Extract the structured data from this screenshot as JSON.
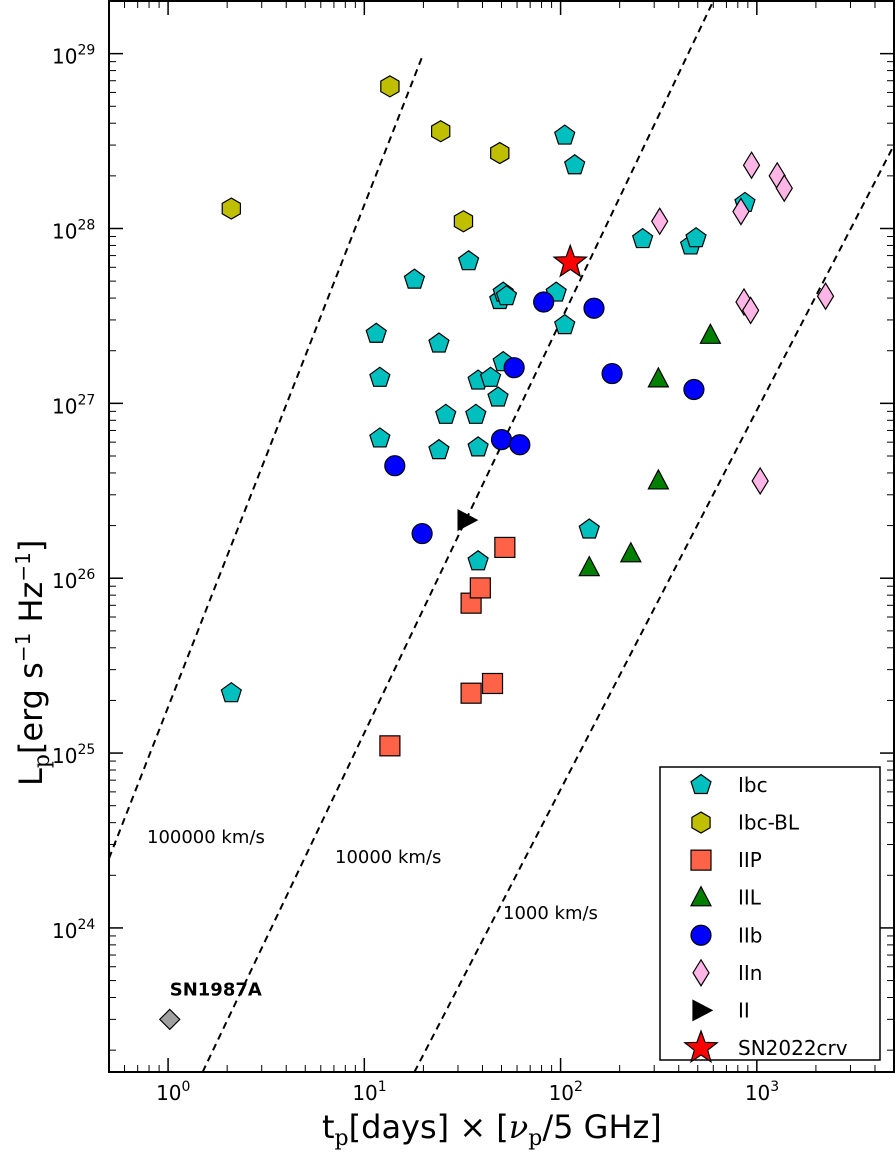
{
  "colors": {
    "Ibc": "#00BFBF",
    "Ibc-BL": "#BFBF00",
    "IIP": "#FF6347",
    "IIL": "#008000",
    "IIb": "#0000FF",
    "IIn": "#FFB6E6",
    "II": "#000000",
    "SN2022crv": "#FF0000",
    "SN1987A": "#A0A0A0"
  },
  "chart_data": {
    "type": "scatter",
    "xscale": "log",
    "yscale": "log",
    "xlim": [
      0.5,
      5000
    ],
    "ylim": [
      1.5e+23,
      2e+29
    ],
    "xticks": [
      {
        "value": 1,
        "base": "10",
        "exp": "0"
      },
      {
        "value": 10,
        "base": "10",
        "exp": "1"
      },
      {
        "value": 100,
        "base": "10",
        "exp": "2"
      },
      {
        "value": 1000,
        "base": "10",
        "exp": "3"
      }
    ],
    "yticks": [
      {
        "value": 1e+24,
        "base": "10",
        "exp": "24"
      },
      {
        "value": 1e+25,
        "base": "10",
        "exp": "25"
      },
      {
        "value": 1e+26,
        "base": "10",
        "exp": "26"
      },
      {
        "value": 1e+27,
        "base": "10",
        "exp": "27"
      },
      {
        "value": 1e+28,
        "base": "10",
        "exp": "28"
      },
      {
        "value": 1e+29,
        "base": "10",
        "exp": "29"
      }
    ],
    "xlabel": "t_p[days] × [ν_p/5 GHz]",
    "ylabel": "L_p[erg s^-1 Hz^-1]",
    "legend_position": "lower-right",
    "velocity_lines": [
      {
        "label": "100000 km/s",
        "points": [
          [
            0.5,
            2.5e+24
          ],
          [
            20,
            1e+29
          ]
        ]
      },
      {
        "label": "10000 km/s",
        "points": [
          [
            1.5,
            1.5e+23
          ],
          [
            600,
            2e+29
          ]
        ]
      },
      {
        "label": "1000 km/s",
        "points": [
          [
            18,
            1.5e+23
          ],
          [
            5000,
            3e+28
          ]
        ]
      }
    ],
    "series": [
      {
        "name": "Ibc",
        "marker": "pentagon",
        "points": [
          [
            2.1,
            2.2e+25
          ],
          [
            11.5,
            2.5e+27
          ],
          [
            12,
            1.4e+27
          ],
          [
            12,
            6.3e+26
          ],
          [
            18,
            5.1e+27
          ],
          [
            24,
            2.2e+27
          ],
          [
            24,
            5.4e+26
          ],
          [
            26,
            8.6e+26
          ],
          [
            34,
            6.5e+27
          ],
          [
            37,
            8.6e+26
          ],
          [
            38,
            1.35e+27
          ],
          [
            38,
            5.6e+26
          ],
          [
            38,
            1.25e+26
          ],
          [
            44,
            1.4e+27
          ],
          [
            48,
            1.08e+27
          ],
          [
            49,
            3.9e+27
          ],
          [
            51,
            4.3e+27
          ],
          [
            51,
            1.72e+27
          ],
          [
            53,
            4.1e+27
          ],
          [
            95,
            4.3e+27
          ],
          [
            105,
            2.8e+27
          ],
          [
            105,
            3.4e+28
          ],
          [
            118,
            2.3e+28
          ],
          [
            140,
            1.9e+26
          ],
          [
            262,
            8.7e+27
          ],
          [
            460,
            8e+27
          ],
          [
            490,
            8.8e+27
          ],
          [
            870,
            1.4e+28
          ]
        ]
      },
      {
        "name": "Ibc-BL",
        "marker": "hexagon",
        "points": [
          [
            2.1,
            1.3e+28
          ],
          [
            13.5,
            6.5e+28
          ],
          [
            24.5,
            3.6e+28
          ],
          [
            32,
            1.1e+28
          ],
          [
            49,
            2.7e+28
          ]
        ]
      },
      {
        "name": "IIP",
        "marker": "square",
        "points": [
          [
            13.5,
            1.1e+25
          ],
          [
            35,
            2.2e+25
          ],
          [
            35,
            7.2e+25
          ],
          [
            39,
            8.8e+25
          ],
          [
            45,
            2.5e+25
          ],
          [
            52,
            1.5e+26
          ]
        ]
      },
      {
        "name": "IIL",
        "marker": "triangle",
        "points": [
          [
            140,
            1.15e+26
          ],
          [
            228,
            1.38e+26
          ],
          [
            315,
            3.6e+26
          ],
          [
            315,
            1.38e+27
          ],
          [
            580,
            2.45e+27
          ]
        ]
      },
      {
        "name": "IIb",
        "marker": "circle",
        "points": [
          [
            14.3,
            4.4e+26
          ],
          [
            19.7,
            1.8e+26
          ],
          [
            50,
            6.2e+26
          ],
          [
            58,
            1.6e+27
          ],
          [
            62,
            5.8e+26
          ],
          [
            82,
            3.8e+27
          ],
          [
            148,
            3.5e+27
          ],
          [
            183,
            1.48e+27
          ],
          [
            478,
            1.2e+27
          ]
        ]
      },
      {
        "name": "IIn",
        "marker": "diamond",
        "points": [
          [
            320,
            1.1e+28
          ],
          [
            830,
            1.25e+28
          ],
          [
            860,
            3.8e+27
          ],
          [
            930,
            3.4e+27
          ],
          [
            940,
            2.3e+28
          ],
          [
            1040,
            3.6e+26
          ],
          [
            1270,
            2e+28
          ],
          [
            1380,
            1.7e+28
          ],
          [
            2240,
            4.1e+27
          ]
        ]
      },
      {
        "name": "II",
        "marker": "triangle-right",
        "points": [
          [
            33,
            2.15e+26
          ]
        ]
      },
      {
        "name": "SN2022crv",
        "marker": "star",
        "points": [
          [
            112,
            6.4e+27
          ]
        ]
      }
    ],
    "annotations": [
      {
        "text": "SN1987A",
        "x": 1.02,
        "y": 3e+23,
        "marker": "diamond"
      }
    ]
  }
}
